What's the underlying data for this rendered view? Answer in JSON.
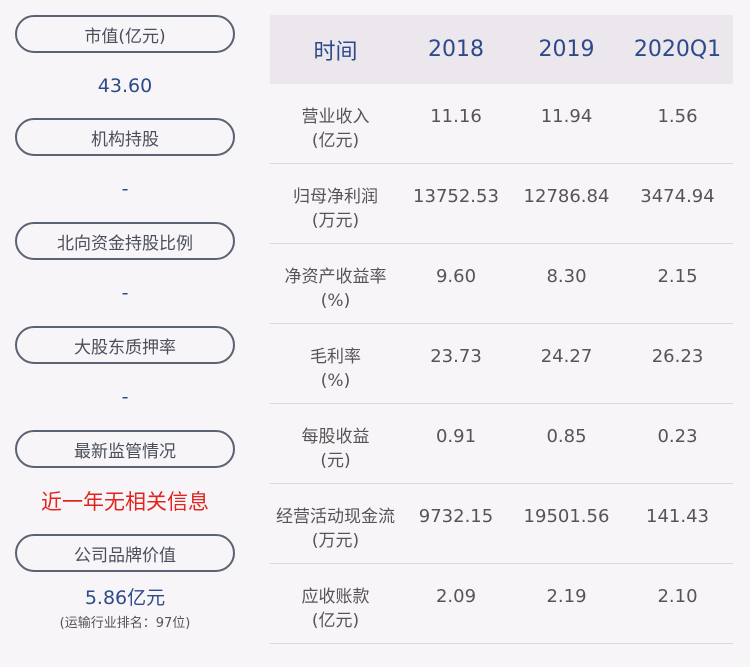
{
  "left_panel": {
    "market_cap_label": "市值(亿元)",
    "market_cap_value": "43.60",
    "institution_label": "机构持股",
    "institution_value": "-",
    "northbound_label": "北向资金持股比例",
    "northbound_value": "-",
    "pledge_label": "大股东质押率",
    "pledge_value": "-",
    "regulation_label": "最新监管情况",
    "regulation_value": "近一年无相关信息",
    "brand_label": "公司品牌价值",
    "brand_value": "5.86亿元",
    "brand_rank": "(运输行业排名：97位)"
  },
  "table": {
    "headers": [
      "时间",
      "2018",
      "2019",
      "2020Q1"
    ],
    "rows": [
      {
        "name": "营业收入",
        "unit": "(亿元)",
        "v2018": "11.16",
        "v2019": "11.94",
        "v2020q1": "1.56"
      },
      {
        "name": "归母净利润",
        "unit": "(万元)",
        "v2018": "13752.53",
        "v2019": "12786.84",
        "v2020q1": "3474.94"
      },
      {
        "name": "净资产收益率",
        "unit": "(%)",
        "v2018": "9.60",
        "v2019": "8.30",
        "v2020q1": "2.15"
      },
      {
        "name": "毛利率",
        "unit": "(%)",
        "v2018": "23.73",
        "v2019": "24.27",
        "v2020q1": "26.23"
      },
      {
        "name": "每股收益",
        "unit": "(元)",
        "v2018": "0.91",
        "v2019": "0.85",
        "v2020q1": "0.23"
      },
      {
        "name": "经营活动现金流",
        "unit": "(万元)",
        "v2018": "9732.15",
        "v2019": "19501.56",
        "v2020q1": "141.43"
      },
      {
        "name": "应收账款",
        "unit": "(亿元)",
        "v2018": "2.09",
        "v2019": "2.19",
        "v2020q1": "2.10"
      }
    ]
  }
}
